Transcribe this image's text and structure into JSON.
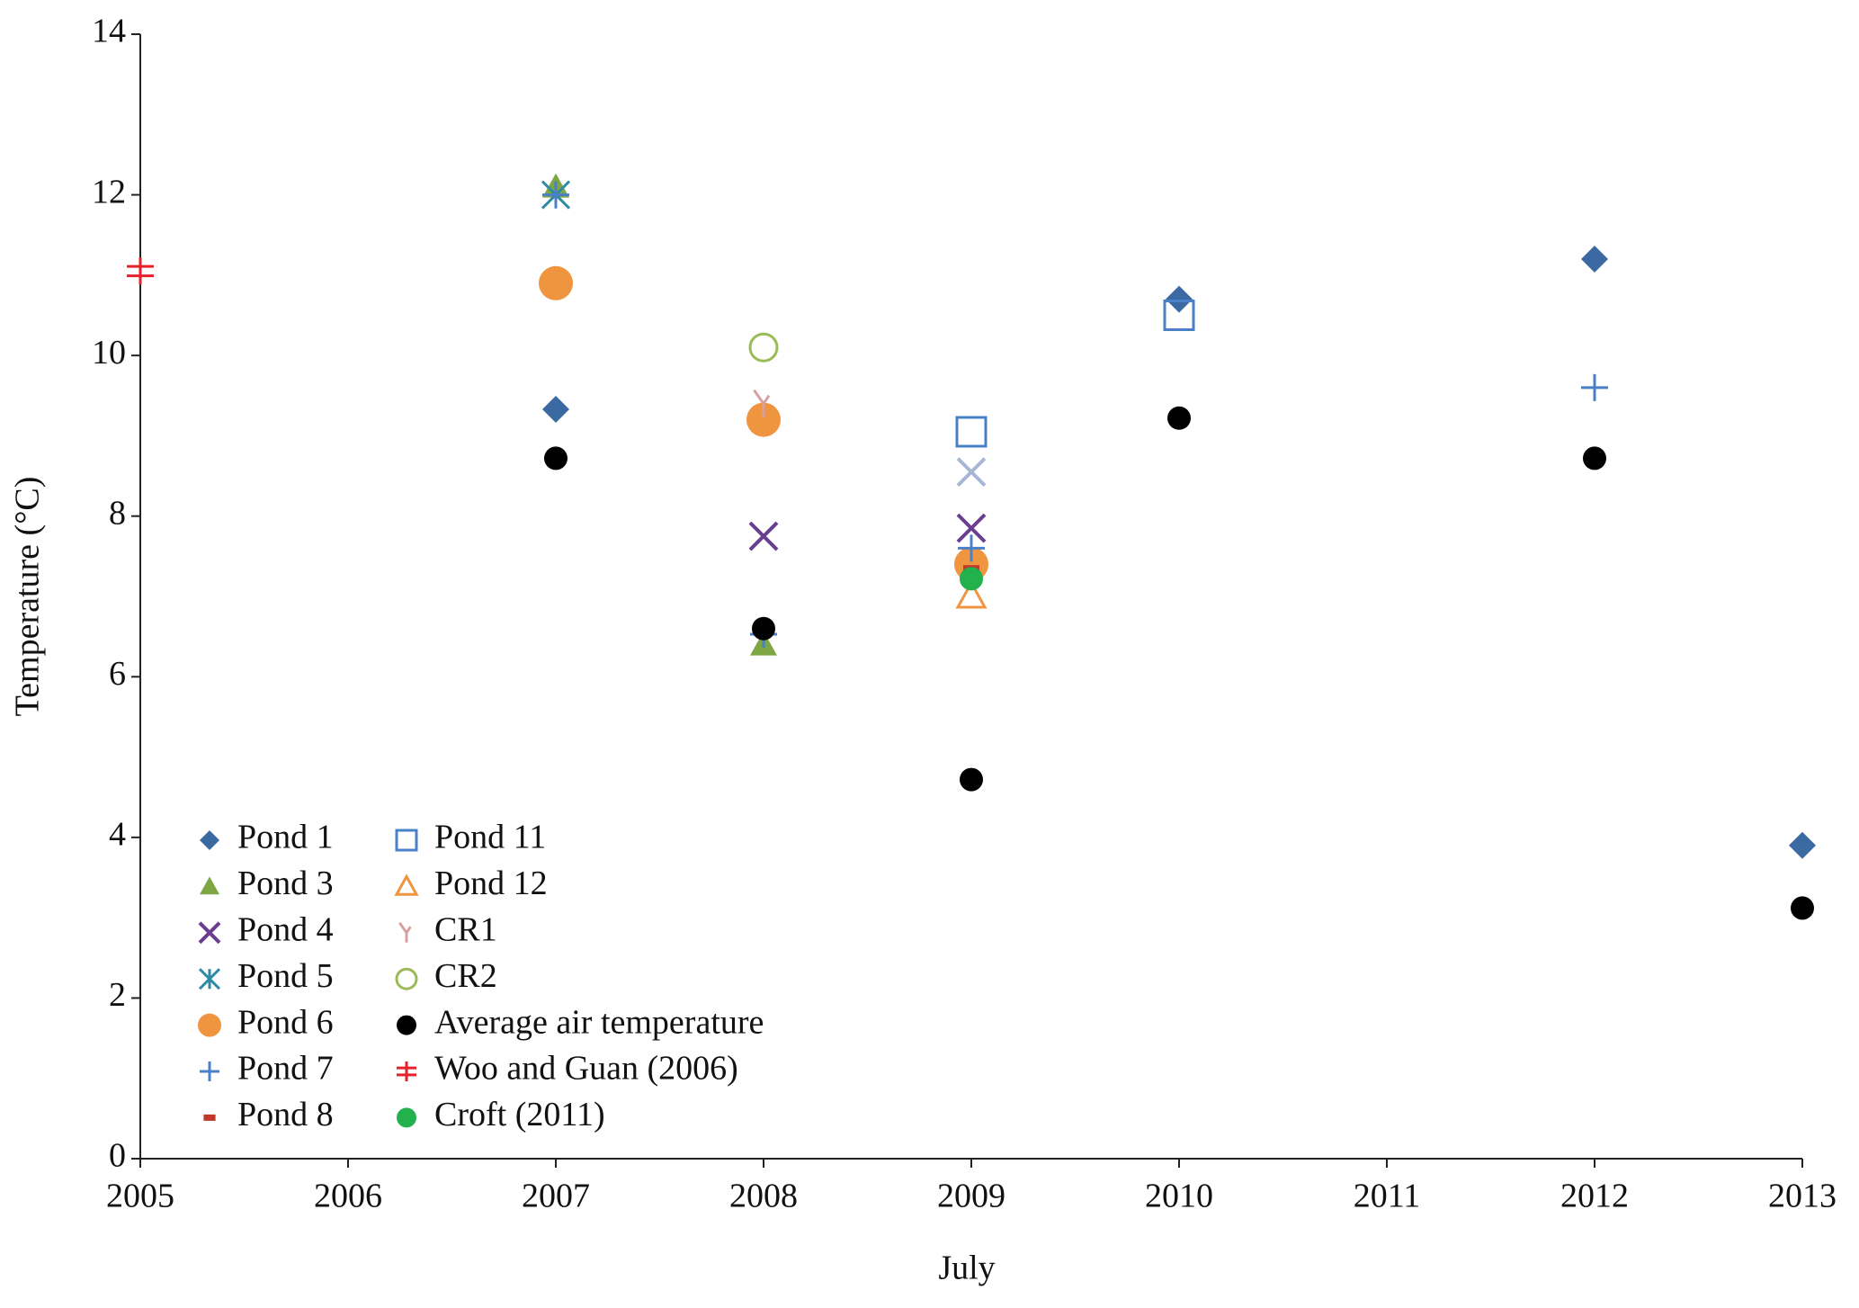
{
  "chart_data": {
    "type": "scatter",
    "x_label": "July",
    "y_label": "Temperature (°C)",
    "xlim": [
      2005,
      2013
    ],
    "xticks": [
      2005,
      2006,
      2007,
      2008,
      2009,
      2010,
      2011,
      2012,
      2013
    ],
    "ylim": [
      0,
      14
    ],
    "yticks": [
      0,
      2,
      4,
      6,
      8,
      10,
      12,
      14
    ],
    "grid": false,
    "legend": "lower left",
    "series": [
      {
        "name": "Pond 1",
        "color": "#3b6aa3",
        "marker": "diamond",
        "x": [
          2007,
          2008,
          2010,
          2012,
          2013
        ],
        "values": [
          9.33,
          9.15,
          10.7,
          11.2,
          3.9
        ]
      },
      {
        "name": "Pond 3",
        "color": "#7fa644",
        "marker": "triangle",
        "x": [
          2007,
          2008
        ],
        "values": [
          12.1,
          6.4
        ]
      },
      {
        "name": "Pond 4",
        "color": "#6a3d8f",
        "marker": "x",
        "x": [
          2008,
          2009
        ],
        "values": [
          7.75,
          7.85
        ]
      },
      {
        "name": "Pond 5",
        "color": "#2e8ba3",
        "marker": "asterisk",
        "x": [
          2007
        ],
        "values": [
          12.0
        ]
      },
      {
        "name": "Pond 6",
        "color": "#f0953f",
        "marker": "circle",
        "x": [
          2007,
          2008,
          2009
        ],
        "values": [
          10.9,
          9.2,
          7.4
        ]
      },
      {
        "name": "Pond 7",
        "color": "#4a80c8",
        "marker": "plus",
        "x": [
          2007,
          2008,
          2009,
          2012
        ],
        "values": [
          12.0,
          6.53,
          7.6,
          9.6
        ]
      },
      {
        "name": "Pond 8",
        "color": "#c0392b",
        "marker": "dash",
        "x": [
          2009
        ],
        "values": [
          7.35
        ]
      },
      {
        "name": "Pond 11",
        "color": "#4a80c8",
        "marker": "square",
        "x": [
          2009,
          2010
        ],
        "values": [
          9.05,
          10.5
        ]
      },
      {
        "name": "Pond 12",
        "color": "#f0953f",
        "marker": "open-triangle",
        "x": [
          2009
        ],
        "values": [
          7.0
        ]
      },
      {
        "name": "CR1",
        "color": "#d9a0a0",
        "marker": "cr",
        "x": [
          2008
        ],
        "values": [
          9.4
        ]
      },
      {
        "name": "CR2",
        "color": "#9bbb59",
        "marker": "open-circle",
        "x": [
          2008
        ],
        "values": [
          10.1
        ]
      },
      {
        "name": "Average air temperature",
        "color": "#000000",
        "marker": "dot",
        "x": [
          2007,
          2008,
          2009,
          2010,
          2012,
          2013
        ],
        "values": [
          8.72,
          6.6,
          4.72,
          9.22,
          8.72,
          3.12
        ]
      },
      {
        "name": "Woo and Guan (2006)",
        "color": "#e8202a",
        "marker": "double-cross",
        "x": [
          2005
        ],
        "values": [
          11.05
        ]
      },
      {
        "name": "Croft (2011)",
        "color": "#22b14c",
        "marker": "dot",
        "x": [
          2009
        ],
        "values": [
          7.22
        ]
      },
      {
        "name": null,
        "color": "#a8b6d6",
        "marker": "x",
        "x": [
          2009
        ],
        "values": [
          8.55
        ]
      }
    ]
  }
}
